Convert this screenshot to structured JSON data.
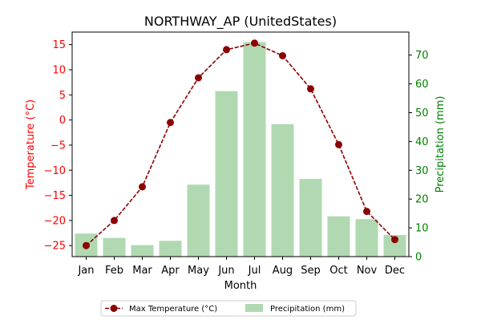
{
  "chart_data": {
    "type": "bar+line",
    "title": "NORTHWAY_AP (UnitedStates)",
    "xlabel": "Month",
    "ylabel_left": "Temperature (°C)",
    "ylabel_right": "Precipitation (mm)",
    "categories": [
      "Jan",
      "Feb",
      "Mar",
      "Apr",
      "May",
      "Jun",
      "Jul",
      "Aug",
      "Sep",
      "Oct",
      "Nov",
      "Dec"
    ],
    "series": [
      {
        "name": "Max Temperature (°C)",
        "kind": "line",
        "axis": "left",
        "color": "#8b0000",
        "values": [
          -25.0,
          -20.0,
          -13.3,
          -0.5,
          8.4,
          14.0,
          15.3,
          12.8,
          6.2,
          -4.9,
          -18.2,
          -23.8
        ]
      },
      {
        "name": "Precipitation (mm)",
        "kind": "bar",
        "axis": "right",
        "color": "#b0d9b1",
        "values": [
          8.0,
          6.5,
          4.0,
          5.5,
          25.0,
          57.5,
          74.5,
          46.0,
          27.0,
          14.0,
          13.0,
          7.5
        ]
      }
    ],
    "ylim_left": [
      -27.2,
      17.5
    ],
    "ylim_right": [
      0,
      78
    ],
    "yticks_left": [
      "−25",
      "−20",
      "−15",
      "−10",
      "−5",
      "0",
      "5",
      "10",
      "15"
    ],
    "yticks_right": [
      "0",
      "10",
      "20",
      "30",
      "40",
      "50",
      "60",
      "70"
    ],
    "left_axis_color": "#ff0000",
    "right_axis_color": "#008000",
    "grid": false,
    "legend_position": "bottom-center"
  }
}
